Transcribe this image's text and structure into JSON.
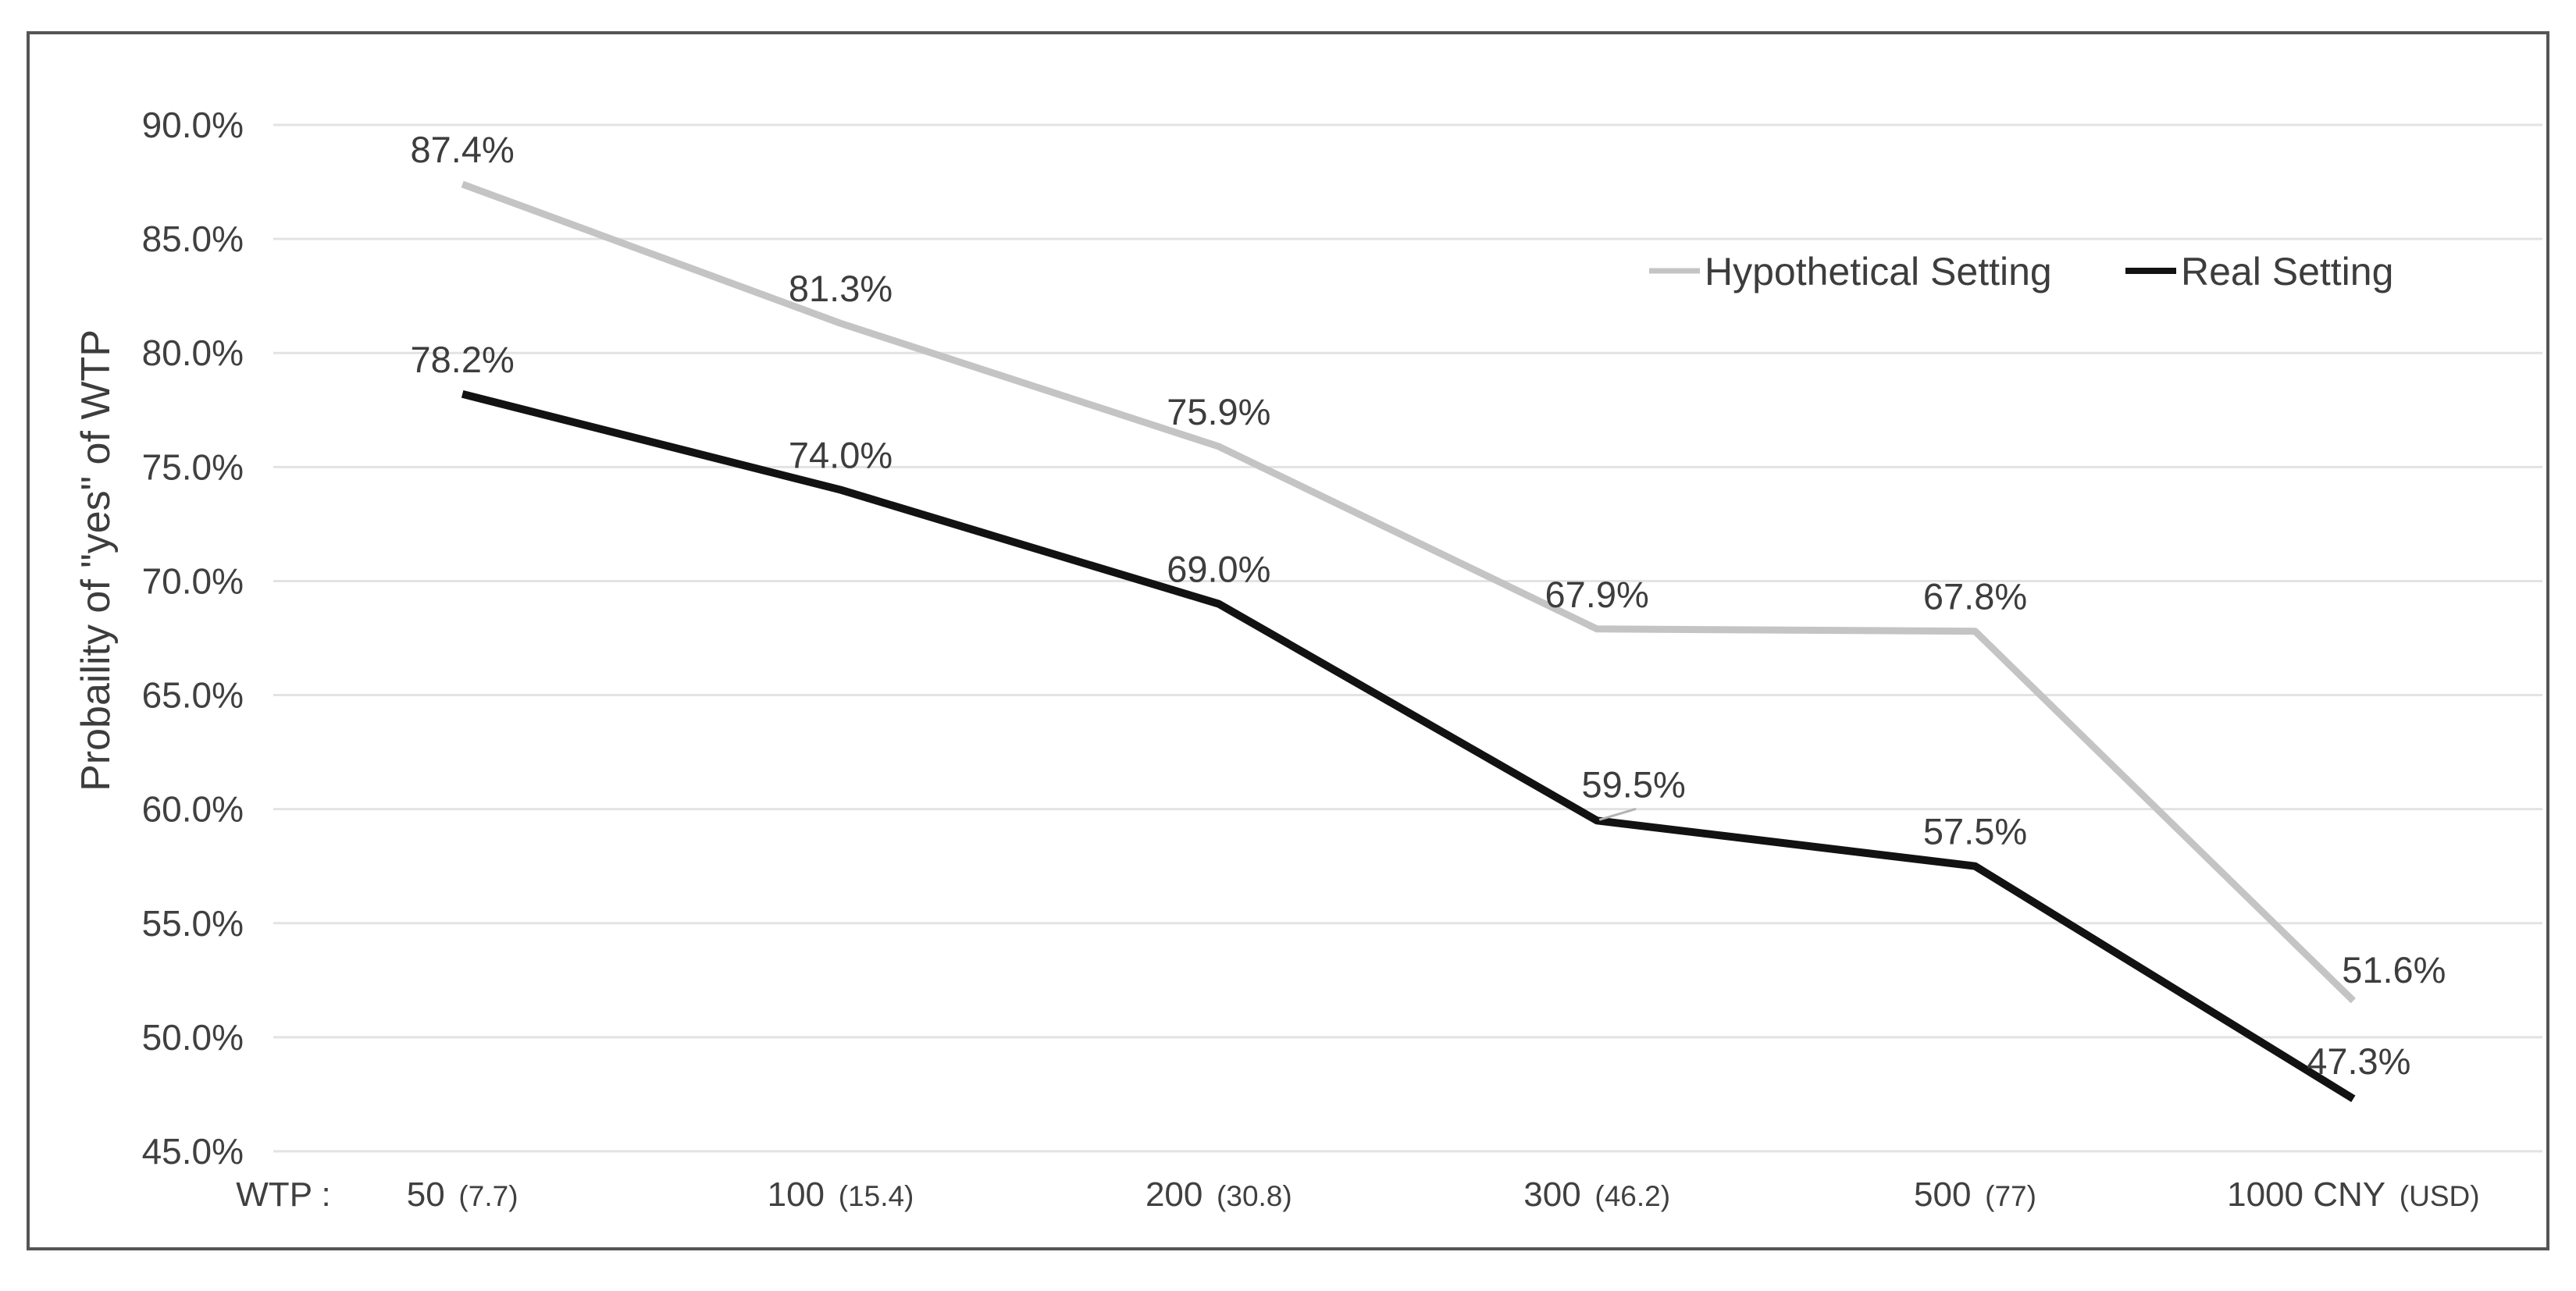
{
  "chart_data": {
    "type": "line",
    "title": "",
    "ylabel": "Probaility of \"yes\" of WTP",
    "x_prefix": "WTP :",
    "grid": true,
    "legend_position": "top-right-inside",
    "y_axis": {
      "min": 45,
      "max": 90,
      "step": 5,
      "ticks": [
        {
          "value": 90,
          "label": "90.0%"
        },
        {
          "value": 85,
          "label": "85.0%"
        },
        {
          "value": 80,
          "label": "80.0%"
        },
        {
          "value": 75,
          "label": "75.0%"
        },
        {
          "value": 70,
          "label": "70.0%"
        },
        {
          "value": 65,
          "label": "65.0%"
        },
        {
          "value": 60,
          "label": "60.0%"
        },
        {
          "value": 55,
          "label": "55.0%"
        },
        {
          "value": 50,
          "label": "50.0%"
        },
        {
          "value": 45,
          "label": "45.0%"
        }
      ]
    },
    "categories": [
      {
        "main": "50",
        "paren": "(7.7)"
      },
      {
        "main": "100",
        "paren": "(15.4)"
      },
      {
        "main": "200",
        "paren": "(30.8)"
      },
      {
        "main": "300",
        "paren": "(46.2)"
      },
      {
        "main": "500",
        "paren": "(77)"
      },
      {
        "main": "1000 CNY",
        "paren": "(USD)"
      }
    ],
    "series": [
      {
        "name": "Hypothetical Setting",
        "color": "#c4c4c4",
        "stroke_width": 9,
        "values": [
          87.4,
          81.3,
          75.9,
          67.9,
          67.8,
          51.6
        ],
        "point_labels": [
          "87.4%",
          "81.3%",
          "75.9%",
          "67.9%",
          "67.8%",
          "51.6%"
        ],
        "label_overrides": {
          "5": {
            "dx": 52,
            "dy": -39
          }
        }
      },
      {
        "name": "Real Setting",
        "color": "#121212",
        "stroke_width": 10,
        "values": [
          78.2,
          74.0,
          69.0,
          59.5,
          57.5,
          47.3
        ],
        "point_labels": [
          "78.2%",
          "74.0%",
          "69.0%",
          "59.5%",
          "57.5%",
          "47.3%"
        ],
        "label_overrides": {
          "3": {
            "dx": 47,
            "dy": -46,
            "leader": true
          },
          "5": {
            "dx": 7,
            "dy": -48
          }
        }
      }
    ]
  },
  "colors": {
    "background": "#ffffff",
    "border": "#555555",
    "gridline": "#e3e3e3",
    "tick_text": "#404040",
    "data_label_text": "#3d3d3d",
    "legend_text": "#3d3d3d",
    "axis_title_text": "#3d3d3d",
    "leader_line": "#b3b3b3"
  }
}
